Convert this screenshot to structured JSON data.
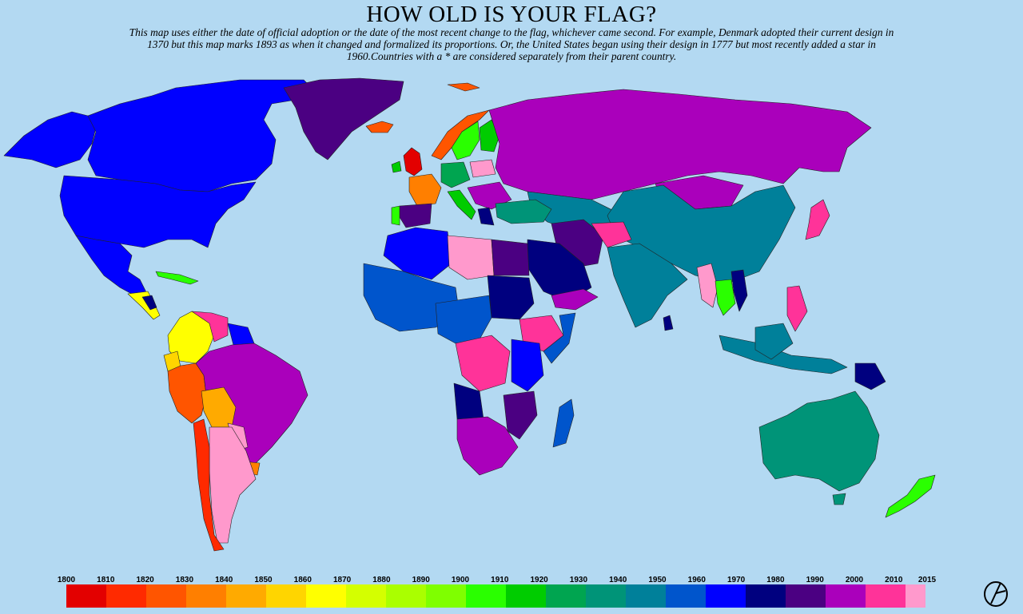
{
  "title": "HOW OLD IS YOUR FLAG?",
  "subtitle": "This map uses either the date of official adoption or the date of the most recent change to the flag, whichever came second. For example, Denmark adopted their current design in 1370 but this map marks 1893 as when it changed and formalized its proportions. Or, the United States began using their design in 1777 but most recently added a star in 1960.Countries with a * are considered separately from their parent country.",
  "legend": {
    "tick_labels": [
      "1800",
      "1810",
      "1820",
      "1830",
      "1840",
      "1850",
      "1860",
      "1870",
      "1880",
      "1890",
      "1900",
      "1910",
      "1920",
      "1930",
      "1940",
      "1950",
      "1960",
      "1970",
      "1980",
      "1990",
      "2000",
      "2010",
      "2015"
    ],
    "colors": [
      "#e30000",
      "#ff2a00",
      "#ff5500",
      "#ff7f00",
      "#ffaa00",
      "#ffd500",
      "#ffff00",
      "#d4ff00",
      "#aaff00",
      "#7fff00",
      "#2aff00",
      "#00cc00",
      "#00a550",
      "#009478",
      "#00809a",
      "#0055cc",
      "#0000ff",
      "#00007f",
      "#4b0082",
      "#aa00bb",
      "#ff3399",
      "#ff99cc"
    ]
  },
  "regions": [
    {
      "name": "USA",
      "color": "#0000ff"
    },
    {
      "name": "Canada",
      "color": "#0000ff"
    },
    {
      "name": "Alaska",
      "color": "#0000ff"
    },
    {
      "name": "Greenland",
      "color": "#4b0082"
    },
    {
      "name": "Mexico",
      "color": "#0000ff"
    },
    {
      "name": "Cuba",
      "color": "#2aff00"
    },
    {
      "name": "Central America",
      "color": "#ffff00"
    },
    {
      "name": "Guatemala",
      "color": "#00007f"
    },
    {
      "name": "Colombia",
      "color": "#ffff00"
    },
    {
      "name": "Venezuela",
      "color": "#ff3399"
    },
    {
      "name": "Guyana",
      "color": "#0000ff"
    },
    {
      "name": "Ecuador",
      "color": "#ffd500"
    },
    {
      "name": "Peru",
      "color": "#ff5500"
    },
    {
      "name": "Brazil",
      "color": "#aa00bb"
    },
    {
      "name": "Bolivia",
      "color": "#ffaa00"
    },
    {
      "name": "Paraguay",
      "color": "#ff99cc"
    },
    {
      "name": "Argentina",
      "color": "#ff99cc"
    },
    {
      "name": "Chile",
      "color": "#ff2a00"
    },
    {
      "name": "Uruguay",
      "color": "#ff7f00"
    },
    {
      "name": "Russia",
      "color": "#aa00bb"
    },
    {
      "name": "China",
      "color": "#00809a"
    },
    {
      "name": "Mongolia",
      "color": "#00809a"
    },
    {
      "name": "Kazakhstan",
      "color": "#aa00bb"
    },
    {
      "name": "India",
      "color": "#00809a"
    },
    {
      "name": "Iran",
      "color": "#4b0082"
    },
    {
      "name": "Afghanistan",
      "color": "#ff3399"
    },
    {
      "name": "Saudi Arabia",
      "color": "#00007f"
    },
    {
      "name": "Yemen",
      "color": "#aa00bb"
    },
    {
      "name": "Egypt",
      "color": "#4b0082"
    },
    {
      "name": "Libya",
      "color": "#ff99cc"
    },
    {
      "name": "Algeria",
      "color": "#0000ff"
    },
    {
      "name": "Sudan",
      "color": "#00007f"
    },
    {
      "name": "Ethiopia",
      "color": "#ff3399"
    },
    {
      "name": "Somalia",
      "color": "#0055cc"
    },
    {
      "name": "West Africa",
      "color": "#0055cc"
    },
    {
      "name": "Central Africa",
      "color": "#0055cc"
    },
    {
      "name": "DR Congo",
      "color": "#ff3399"
    },
    {
      "name": "Kenya",
      "color": "#0000ff"
    },
    {
      "name": "Angola",
      "color": "#00007f"
    },
    {
      "name": "Southern Africa",
      "color": "#aa00bb"
    },
    {
      "name": "Mozambique",
      "color": "#4b0082"
    },
    {
      "name": "Madagascar",
      "color": "#0055cc"
    },
    {
      "name": "Australia",
      "color": "#009478"
    },
    {
      "name": "New Zealand",
      "color": "#2aff00"
    },
    {
      "name": "Indonesia",
      "color": "#00809a"
    },
    {
      "name": "Papua New Guinea",
      "color": "#00007f"
    },
    {
      "name": "Japan",
      "color": "#ff3399"
    },
    {
      "name": "Philippines",
      "color": "#ff3399"
    },
    {
      "name": "Thailand",
      "color": "#2aff00"
    },
    {
      "name": "Myanmar",
      "color": "#ff99cc"
    },
    {
      "name": "Vietnam",
      "color": "#00007f"
    },
    {
      "name": "Turkey",
      "color": "#009478"
    },
    {
      "name": "UK",
      "color": "#e30000"
    },
    {
      "name": "Ireland",
      "color": "#00cc00"
    },
    {
      "name": "France",
      "color": "#ff7f00"
    },
    {
      "name": "Spain",
      "color": "#4b0082"
    },
    {
      "name": "Portugal",
      "color": "#2aff00"
    },
    {
      "name": "Germany",
      "color": "#00a550"
    },
    {
      "name": "Norway",
      "color": "#ff5500"
    },
    {
      "name": "Sweden",
      "color": "#2aff00"
    },
    {
      "name": "Finland",
      "color": "#00cc00"
    },
    {
      "name": "Poland",
      "color": "#ff99cc"
    },
    {
      "name": "Italy",
      "color": "#00cc00"
    },
    {
      "name": "Balkans",
      "color": "#aa00bb"
    },
    {
      "name": "Greece",
      "color": "#00007f"
    },
    {
      "name": "Iceland",
      "color": "#ff5500"
    },
    {
      "name": "Svalbard",
      "color": "#ff5500"
    },
    {
      "name": "Sri Lanka",
      "color": "#00007f"
    },
    {
      "name": "Borneo",
      "color": "#00809a"
    },
    {
      "name": "Tasmania",
      "color": "#009478"
    }
  ]
}
